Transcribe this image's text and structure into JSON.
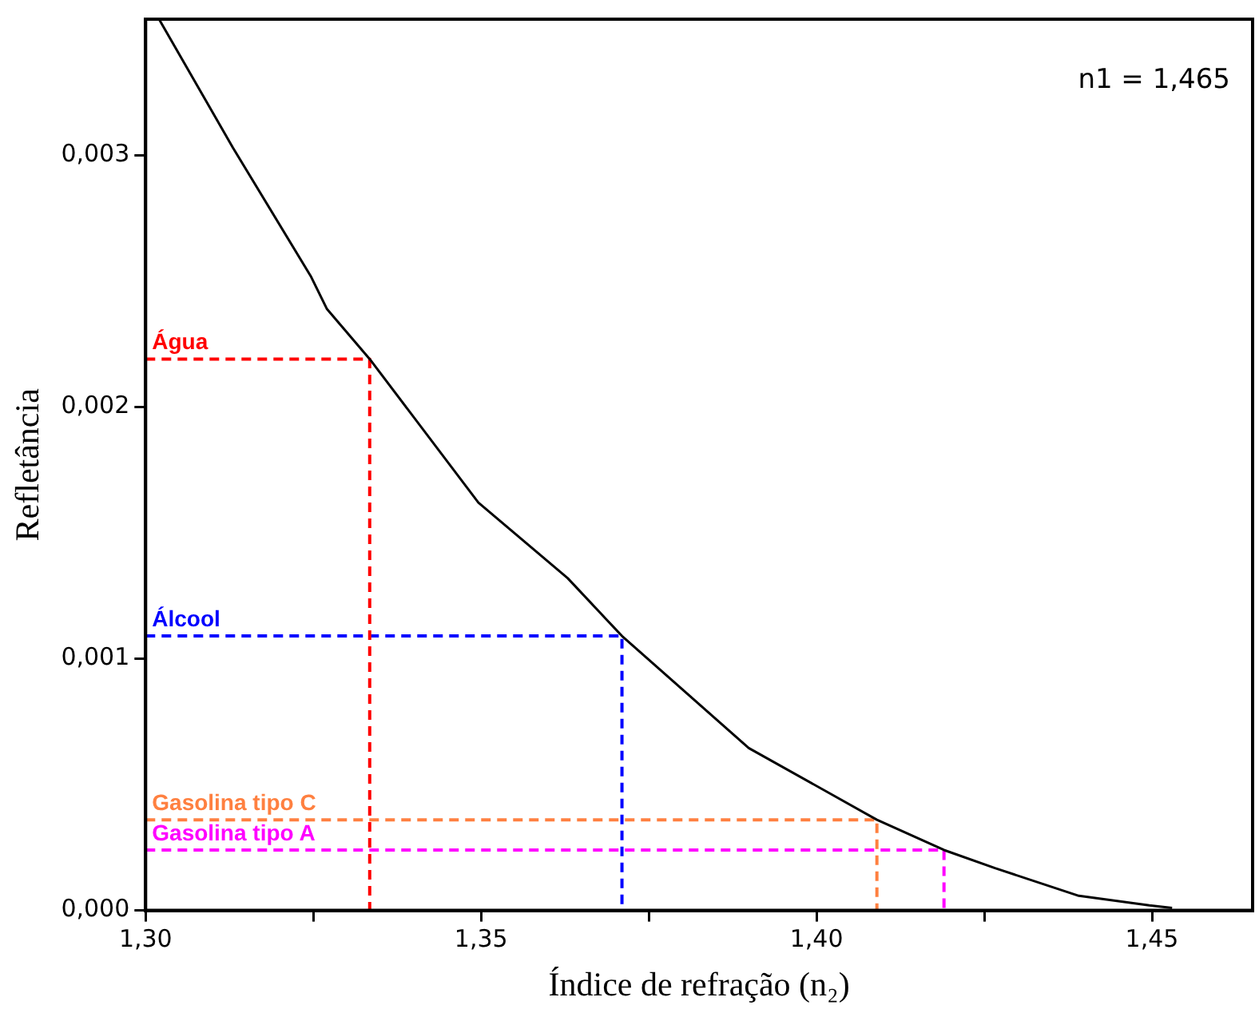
{
  "chart_data": {
    "type": "line",
    "xlabel": "Índice de refração (n₂)",
    "ylabel": "Refletância",
    "annotations": [
      "n1 = 1,465"
    ],
    "xlim": [
      1.3,
      1.465
    ],
    "ylim": [
      0,
      0.00354
    ],
    "xticks": [
      {
        "value": 1.3,
        "label": "1,30"
      },
      {
        "value": 1.325,
        "label": null
      },
      {
        "value": 1.35,
        "label": "1,35"
      },
      {
        "value": 1.375,
        "label": null
      },
      {
        "value": 1.4,
        "label": "1,40"
      },
      {
        "value": 1.425,
        "label": null
      },
      {
        "value": 1.45,
        "label": "1,45"
      }
    ],
    "yticks": [
      {
        "value": 0,
        "label": "0,000"
      },
      {
        "value": 0.001,
        "label": "0,001"
      },
      {
        "value": 0.002,
        "label": "0,002"
      },
      {
        "value": 0.003,
        "label": "0,003"
      }
    ],
    "grid": false,
    "legend": false,
    "marker": "none",
    "series": [
      {
        "color": "#000000",
        "line_style": "solid",
        "x": [
          1.302,
          1.313,
          1.3246,
          1.327,
          1.3334,
          1.3496,
          1.3629,
          1.371,
          1.3899,
          1.409,
          1.419,
          1.4266,
          1.4391,
          1.4496,
          1.453
        ],
        "values": [
          0.00354,
          0.00303,
          0.00252,
          0.00239,
          0.00219,
          0.00162,
          0.00132,
          0.00109,
          0.000645,
          0.00036,
          0.00024,
          0.000168,
          5.8e-05,
          2e-05,
          1e-05
        ]
      },
      {
        "name": "Água",
        "color": "#ff0000",
        "line_style": "dashed",
        "x": [
          1.3,
          1.3334,
          1.3334
        ],
        "values": [
          0.00219,
          0.00219,
          0
        ]
      },
      {
        "name": "Álcool",
        "color": "#0000ff",
        "line_style": "dashed",
        "x": [
          1.3,
          1.371,
          1.371
        ],
        "values": [
          0.00109,
          0.00109,
          0
        ]
      },
      {
        "name": "Gasolina tipo C",
        "color": "#ff8040",
        "line_style": "dashed",
        "x": [
          1.3,
          1.409,
          1.409
        ],
        "values": [
          0.00036,
          0.00036,
          0
        ]
      },
      {
        "name": "Gasolina tipo A",
        "color": "#ff00ff",
        "line_style": "dashed",
        "x": [
          1.3,
          1.419,
          1.419
        ],
        "values": [
          0.00024,
          0.00024,
          0
        ]
      }
    ]
  }
}
